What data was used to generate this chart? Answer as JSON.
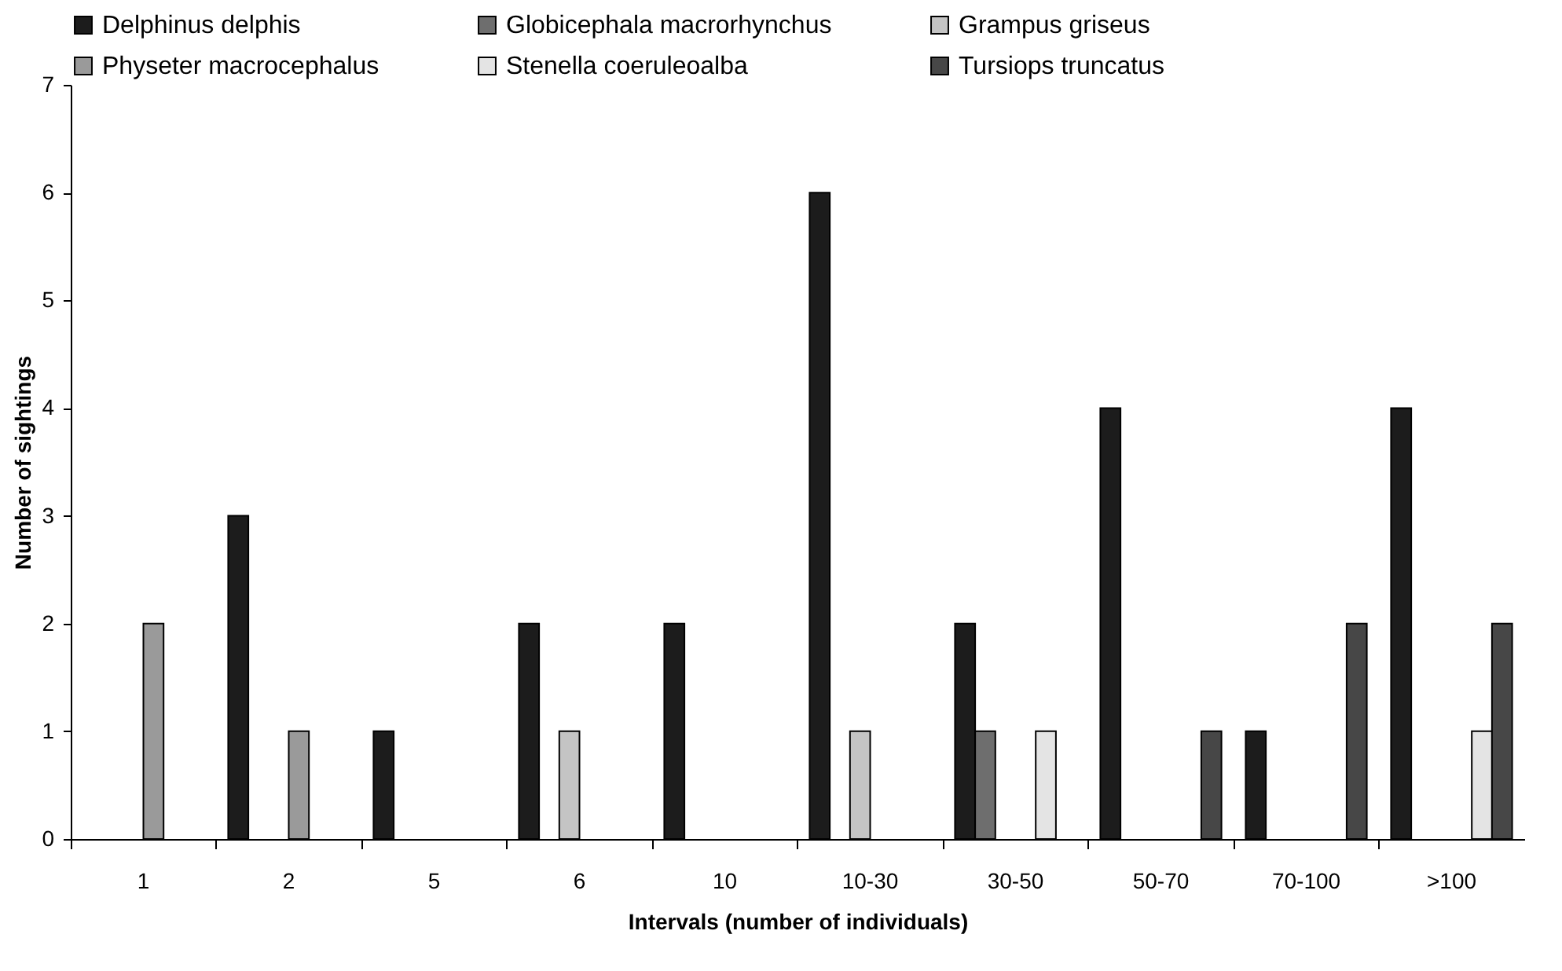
{
  "chart_data": {
    "type": "bar",
    "xlabel": "Intervals (number of individuals)",
    "ylabel": "Number of sightings",
    "categories": [
      "1",
      "2",
      "5",
      "6",
      "10",
      "10-30",
      "30-50",
      "50-70",
      "70-100",
      ">100"
    ],
    "series": [
      {
        "name": "Delphinus delphis",
        "color": "#1c1c1c",
        "values": [
          null,
          3,
          1,
          2,
          2,
          6,
          2,
          4,
          1,
          4
        ]
      },
      {
        "name": "Globicephala macrorhynchus",
        "color": "#6e6e6e",
        "values": [
          null,
          null,
          null,
          null,
          null,
          null,
          1,
          null,
          null,
          null
        ]
      },
      {
        "name": "Grampus griseus",
        "color": "#c4c4c4",
        "values": [
          null,
          null,
          null,
          1,
          null,
          1,
          null,
          null,
          null,
          null
        ]
      },
      {
        "name": "Physeter macrocephalus",
        "color": "#9a9a9a",
        "values": [
          2,
          1,
          null,
          null,
          null,
          null,
          null,
          null,
          null,
          null
        ]
      },
      {
        "name": "Stenella  coeruleoalba",
        "color": "#e4e4e4",
        "values": [
          null,
          null,
          null,
          null,
          null,
          null,
          1,
          null,
          null,
          1
        ]
      },
      {
        "name": "Tursiops truncatus",
        "color": "#474747",
        "values": [
          null,
          null,
          null,
          null,
          null,
          null,
          null,
          1,
          2,
          2
        ]
      }
    ],
    "ylim": [
      0,
      7
    ],
    "yticks": [
      0,
      1,
      2,
      3,
      4,
      5,
      6,
      7
    ],
    "legend": "top"
  }
}
